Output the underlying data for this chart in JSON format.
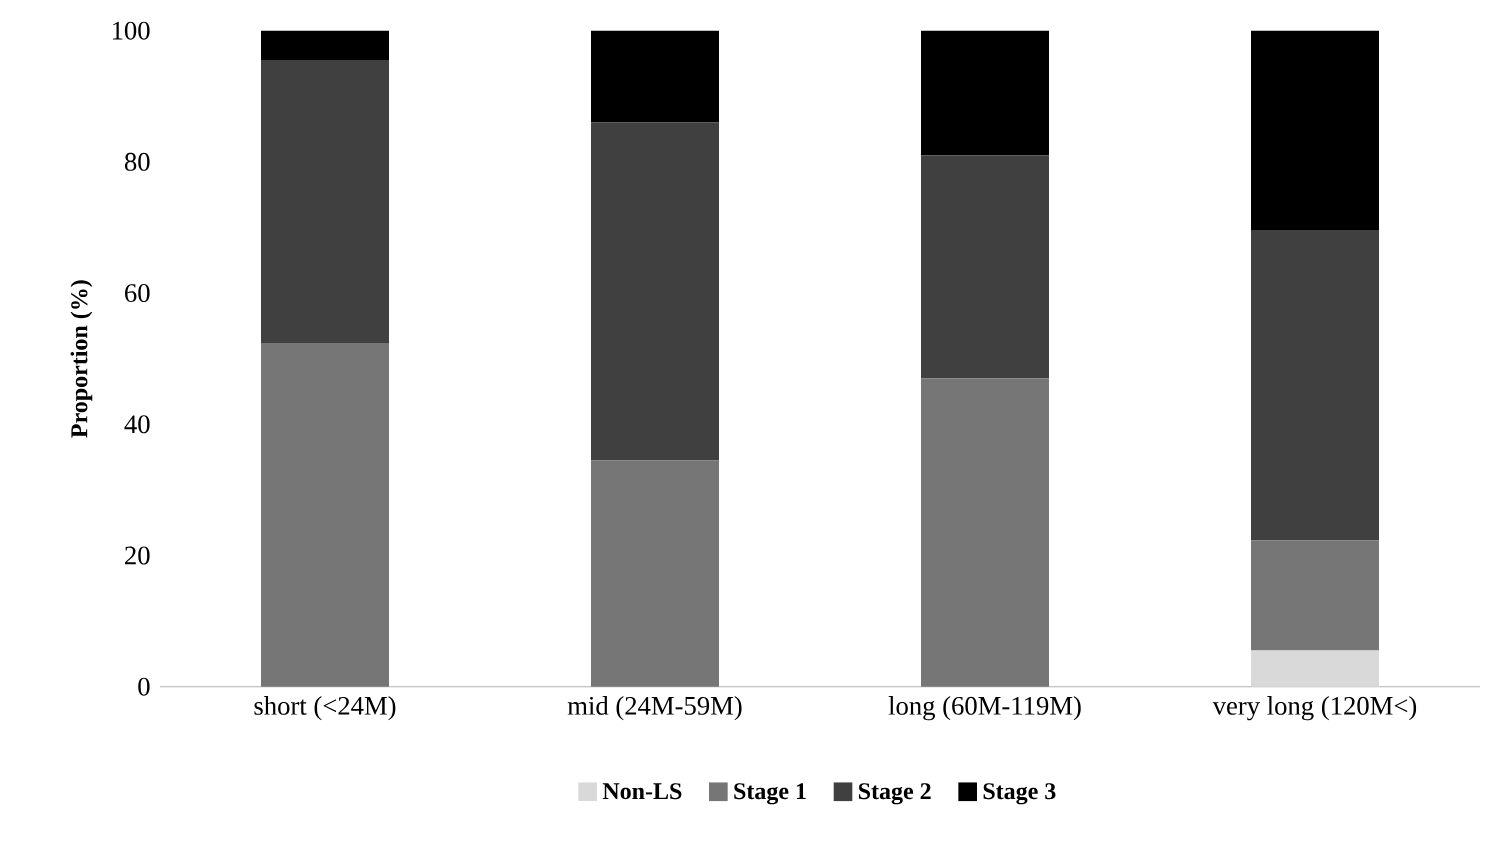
{
  "chart_data": {
    "type": "bar",
    "stacked": true,
    "ylabel": "Proportion (%)",
    "categories": [
      "short (<24M)",
      "mid (24M-59M)",
      "long (60M-119M)",
      "very long (120M<)"
    ],
    "series": [
      {
        "name": "Non-LS",
        "color": "#d9d9d9",
        "values": [
          0,
          0,
          0,
          5.5
        ]
      },
      {
        "name": "Stage 1",
        "color": "#767676",
        "values": [
          52.4,
          34.5,
          47,
          16.8
        ]
      },
      {
        "name": "Stage 2",
        "color": "#404040",
        "values": [
          43,
          51.5,
          34,
          47.2
        ]
      },
      {
        "name": "Stage 3",
        "color": "#000000",
        "values": [
          4.6,
          14,
          19,
          30.5
        ]
      }
    ],
    "ylim": [
      0,
      100
    ],
    "yticks": [
      0,
      20,
      40,
      60,
      80,
      100
    ],
    "grid": false,
    "legend": "bottom"
  }
}
